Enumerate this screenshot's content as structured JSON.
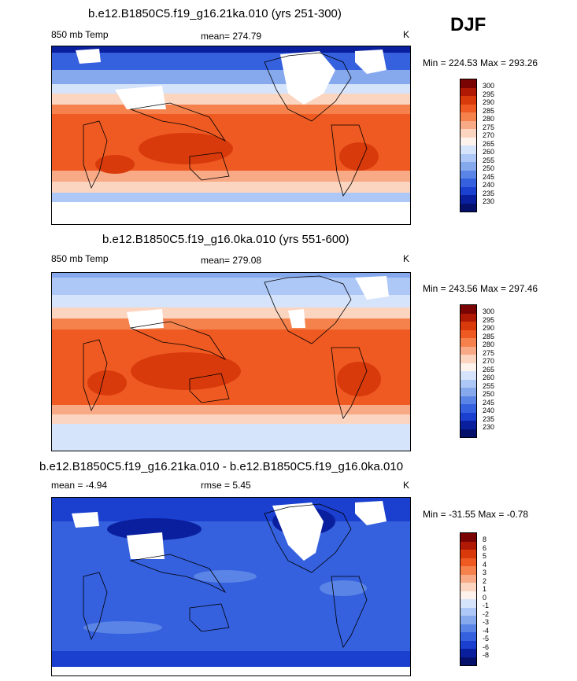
{
  "season": "DJF",
  "panels": [
    {
      "title": "b.e12.B1850C5.f19_g16.21ka.010 (yrs 251-300)",
      "left_label": "850 mb Temp",
      "center_label": "mean= 274.79",
      "units": "K",
      "minmax": "Min = 224.53 Max = 293.26",
      "levels": [
        "300",
        "295",
        "290",
        "285",
        "280",
        "275",
        "270",
        "265",
        "260",
        "255",
        "250",
        "245",
        "240",
        "235",
        "230"
      ],
      "colors": [
        "#7a0403",
        "#b01a05",
        "#d93a0c",
        "#ef5a22",
        "#f5824d",
        "#f8a985",
        "#fbd5c0",
        "#fdf3ec",
        "#d6e4fb",
        "#adc7f6",
        "#86a9ee",
        "#5a85e6",
        "#3560de",
        "#1b3fcf",
        "#0a1f9e",
        "#04106a"
      ],
      "kind": "abs"
    },
    {
      "title": "b.e12.B1850C5.f19_g16.0ka.010 (yrs 551-600)",
      "left_label": "850 mb Temp",
      "center_label": "mean= 279.08",
      "units": "K",
      "minmax": "Min = 243.56 Max = 297.46",
      "levels": [
        "300",
        "295",
        "290",
        "285",
        "280",
        "275",
        "270",
        "265",
        "260",
        "255",
        "250",
        "245",
        "240",
        "235",
        "230"
      ],
      "colors": [
        "#7a0403",
        "#b01a05",
        "#d93a0c",
        "#ef5a22",
        "#f5824d",
        "#f8a985",
        "#fbd5c0",
        "#fdf3ec",
        "#d6e4fb",
        "#adc7f6",
        "#86a9ee",
        "#5a85e6",
        "#3560de",
        "#1b3fcf",
        "#0a1f9e",
        "#04106a"
      ],
      "kind": "abs"
    },
    {
      "title": "b.e12.B1850C5.f19_g16.21ka.010 - b.e12.B1850C5.f19_g16.0ka.010",
      "left_label": "mean =  -4.94",
      "center_label": "rmse =   5.45",
      "units": "K",
      "minmax": "Min = -31.55 Max =  -0.78",
      "levels": [
        "8",
        "6",
        "5",
        "4",
        "3",
        "2",
        "1",
        "0",
        "-1",
        "-2",
        "-3",
        "-4",
        "-5",
        "-6",
        "-8"
      ],
      "colors": [
        "#7a0403",
        "#b01a05",
        "#d93a0c",
        "#ef5a22",
        "#f5824d",
        "#f8a985",
        "#fbd5c0",
        "#fdf3ec",
        "#d6e4fb",
        "#adc7f6",
        "#86a9ee",
        "#5a85e6",
        "#3560de",
        "#1b3fcf",
        "#0a1f9e",
        "#04106a"
      ],
      "kind": "diff"
    }
  ]
}
